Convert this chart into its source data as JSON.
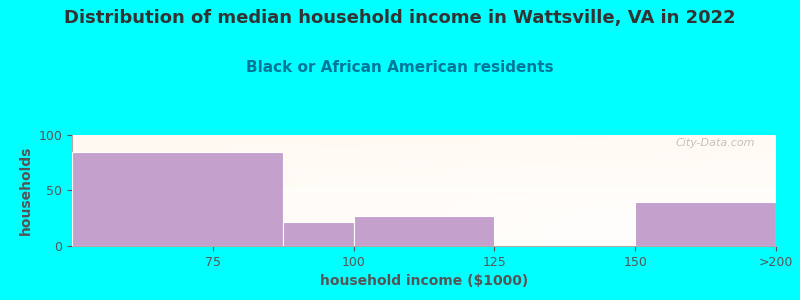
{
  "title": "Distribution of median household income in Wattsville, VA in 2022",
  "subtitle": "Black or African American residents",
  "xlabel": "household income ($1000)",
  "ylabel": "households",
  "categories": [
    "75",
    "100",
    "125",
    "150",
    ">200"
  ],
  "values": [
    85,
    22,
    27,
    0,
    40
  ],
  "bar_color": "#C4A0CC",
  "bar_edgecolor": "#FFFFFF",
  "background_color": "#00FFFF",
  "ylim": [
    0,
    100
  ],
  "yticks": [
    0,
    50,
    100
  ],
  "title_fontsize": 13,
  "subtitle_fontsize": 11,
  "axis_label_fontsize": 10,
  "tick_fontsize": 9,
  "watermark": "City-Data.com",
  "title_color": "#333333",
  "subtitle_color": "#007799",
  "tick_color": "#555555",
  "label_color": "#555555",
  "bin_edges": [
    50,
    87.5,
    100,
    125,
    150,
    175
  ],
  "tick_positions": [
    75,
    100,
    125,
    150,
    175
  ],
  "tick_labels": [
    "75",
    "100",
    "125",
    "150",
    ">200"
  ]
}
